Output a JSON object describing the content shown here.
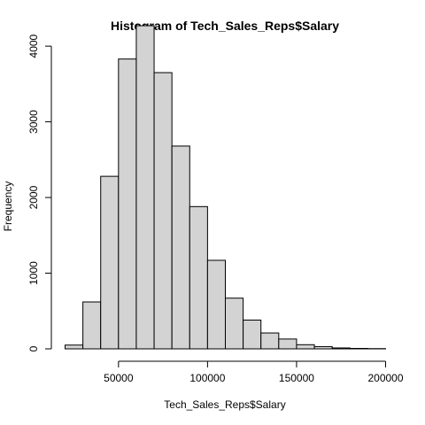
{
  "chart_data": {
    "type": "bar",
    "title": "Histogram of Tech_Sales_Reps$Salary",
    "xlabel": "Tech_Sales_Reps$Salary",
    "ylabel": "Frequency",
    "xlim": [
      20000,
      200000
    ],
    "ylim": [
      0,
      4300
    ],
    "x_ticks": [
      50000,
      100000,
      150000,
      200000
    ],
    "x_tick_labels": [
      "50000",
      "100000",
      "150000",
      "200000"
    ],
    "y_ticks": [
      0,
      1000,
      2000,
      3000,
      4000
    ],
    "y_tick_labels": [
      "0",
      "1000",
      "2000",
      "3000",
      "4000"
    ],
    "bin_edges": [
      20000,
      30000,
      40000,
      50000,
      60000,
      70000,
      80000,
      90000,
      100000,
      110000,
      120000,
      130000,
      140000,
      150000,
      160000,
      170000,
      180000,
      190000,
      200000
    ],
    "values": [
      50,
      620,
      2280,
      3830,
      4270,
      3650,
      2680,
      1880,
      1170,
      670,
      380,
      210,
      130,
      55,
      30,
      12,
      6,
      3
    ],
    "bar_fill": "#d3d3d3",
    "bar_stroke": "#000000",
    "grid": false
  }
}
